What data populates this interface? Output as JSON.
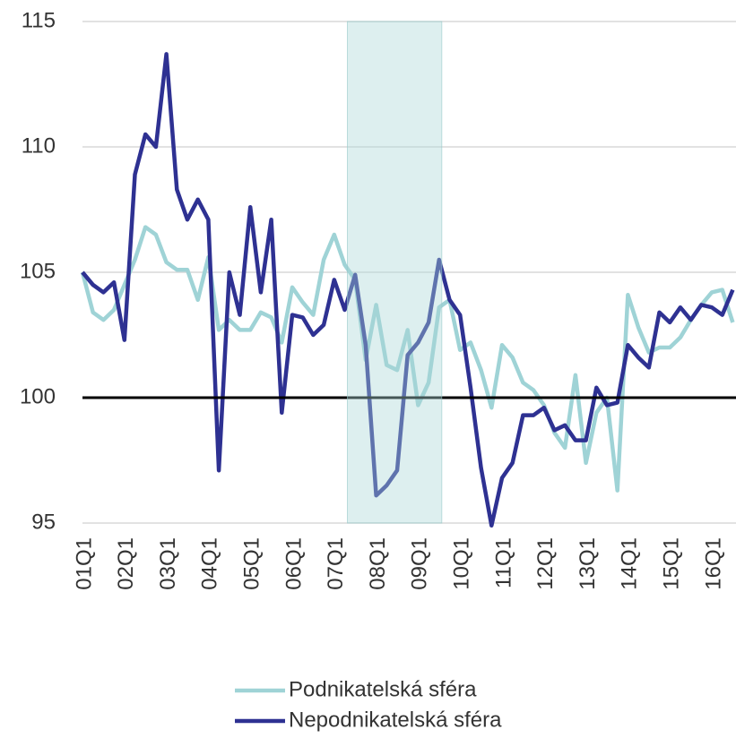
{
  "chart_data": {
    "type": "line",
    "categories": [
      "01Q1",
      null,
      null,
      null,
      "02Q1",
      null,
      null,
      null,
      "03Q1",
      null,
      null,
      null,
      "04Q1",
      null,
      null,
      null,
      "05Q1",
      null,
      null,
      null,
      "06Q1",
      null,
      null,
      null,
      "07Q1",
      null,
      null,
      null,
      "08Q1",
      null,
      null,
      null,
      "09Q1",
      null,
      null,
      null,
      "10Q1",
      null,
      null,
      null,
      "11Q1",
      null,
      null,
      null,
      "12Q1",
      null,
      null,
      null,
      "13Q1",
      null,
      null,
      null,
      "14Q1",
      null,
      null,
      null,
      "15Q1",
      null,
      null,
      null,
      "16Q1",
      null,
      null
    ],
    "series": [
      {
        "name": "Podnikatelská sféra",
        "color": "#9fd3d6",
        "values": [
          105.0,
          103.4,
          103.1,
          103.5,
          104.5,
          105.5,
          106.8,
          106.5,
          105.4,
          105.1,
          105.1,
          103.9,
          105.6,
          102.7,
          103.1,
          102.7,
          102.7,
          103.4,
          103.2,
          102.2,
          104.4,
          103.8,
          103.3,
          105.5,
          106.5,
          105.3,
          104.7,
          101.5,
          103.7,
          101.3,
          101.1,
          102.7,
          99.7,
          100.6,
          103.6,
          103.9,
          101.9,
          102.2,
          101.1,
          99.6,
          102.1,
          101.6,
          100.6,
          100.3,
          99.7,
          98.6,
          98.0,
          100.9,
          97.4,
          99.4,
          100.0,
          96.3,
          104.1,
          102.8,
          101.8,
          102.0,
          102.0,
          102.4,
          103.1,
          103.7,
          104.2,
          104.3,
          103.0
        ]
      },
      {
        "name": "Nepodnikatelská sféra",
        "color": "#2e3192",
        "values": [
          105.0,
          104.5,
          104.2,
          104.6,
          102.3,
          108.9,
          110.5,
          110.0,
          113.7,
          108.3,
          107.1,
          107.9,
          107.1,
          97.1,
          105.0,
          103.3,
          107.6,
          104.2,
          107.1,
          99.4,
          103.3,
          103.2,
          102.5,
          102.9,
          104.7,
          103.5,
          104.9,
          102.1,
          96.1,
          96.5,
          97.1,
          101.7,
          102.2,
          103.0,
          105.5,
          103.9,
          103.3,
          100.4,
          97.2,
          94.9,
          96.8,
          97.4,
          99.3,
          99.3,
          99.6,
          98.7,
          98.9,
          98.3,
          98.3,
          100.4,
          99.7,
          99.8,
          102.1,
          101.6,
          101.2,
          103.4,
          103.0,
          103.6,
          103.1,
          103.7,
          103.6,
          103.3,
          104.3
        ]
      }
    ],
    "ylim": [
      95,
      115
    ],
    "yticks": [
      95,
      100,
      105,
      110,
      115
    ],
    "grid": true,
    "reference_line": 100,
    "highlight": [
      25,
      34
    ],
    "legend": "bottom"
  }
}
